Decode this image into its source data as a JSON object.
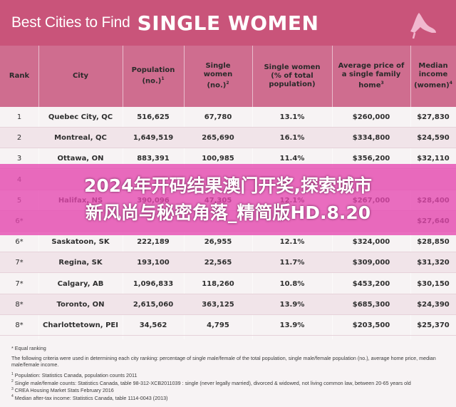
{
  "header": {
    "title_light": "Best Cities to Find",
    "title_bold": "SINGLE WOMEN",
    "icon": "high-heel-shoe-icon"
  },
  "columns": [
    {
      "label": "Rank",
      "sup": ""
    },
    {
      "label": "City",
      "sup": ""
    },
    {
      "label": "Population (no.)",
      "sup": "1"
    },
    {
      "label": "Single women (no.)",
      "sup": "2"
    },
    {
      "label": "Single women (% of total population)",
      "sup": ""
    },
    {
      "label": "Average price of a single family home",
      "sup": "3"
    },
    {
      "label": "Median income (women)",
      "sup": "4"
    }
  ],
  "rows": [
    {
      "rank": "1",
      "city": "Quebec City, QC",
      "population": "516,625",
      "single": "67,780",
      "pct": "13.1%",
      "price": "$260,000",
      "income": "$27,830"
    },
    {
      "rank": "2",
      "city": "Montreal, QC",
      "population": "1,649,519",
      "single": "265,690",
      "pct": "16.1%",
      "price": "$334,800",
      "income": "$24,590"
    },
    {
      "rank": "3",
      "city": "Ottawa, ON",
      "population": "883,391",
      "single": "100,985",
      "pct": "11.4%",
      "price": "$356,200",
      "income": "$32,110"
    },
    {
      "rank": "4",
      "city": "",
      "population": "",
      "single": "",
      "pct": "",
      "price": "",
      "income": ""
    },
    {
      "rank": "5",
      "city": "Halifax, NS",
      "population": "390,096",
      "single": "47,305",
      "pct": "12.1%",
      "price": "$267,000",
      "income": "$28,400"
    },
    {
      "rank": "6*",
      "city": "",
      "population": "",
      "single": "",
      "pct": "",
      "price": "",
      "income": "$27,640"
    },
    {
      "rank": "6*",
      "city": "Saskatoon, SK",
      "population": "222,189",
      "single": "26,955",
      "pct": "12.1%",
      "price": "$324,000",
      "income": "$28,850"
    },
    {
      "rank": "7*",
      "city": "Regina, SK",
      "population": "193,100",
      "single": "22,565",
      "pct": "11.7%",
      "price": "$309,000",
      "income": "$31,320"
    },
    {
      "rank": "7*",
      "city": "Calgary, AB",
      "population": "1,096,833",
      "single": "118,260",
      "pct": "10.8%",
      "price": "$453,200",
      "income": "$30,150"
    },
    {
      "rank": "8*",
      "city": "Toronto, ON",
      "population": "2,615,060",
      "single": "363,125",
      "pct": "13.9%",
      "price": "$685,300",
      "income": "$24,390"
    },
    {
      "rank": "8*",
      "city": "Charlottetown, PEI",
      "population": "34,562",
      "single": "4,795",
      "pct": "13.9%",
      "price": "$203,500",
      "income": "$25,370"
    }
  ],
  "overlay": {
    "line1": "2024年开码结果澳门开奖,探索城市",
    "line2": "新风尚与秘密角落_精简版HD.8.20"
  },
  "notes": {
    "equal": "* Equal ranking",
    "criteria": "The following criteria were used in determining each city ranking: percentage of single male/female of the total population, single male/female population (no.), average home price, median male/female income.",
    "sources": [
      {
        "num": "1",
        "text": "Population: Statistics Canada, population counts 2011"
      },
      {
        "num": "2",
        "text": "Single male/female counts: Statistics Canada, table 98-312-XCB2011039 : single (never legally married), divorced & widowed, not living common law, between 20-65 years old"
      },
      {
        "num": "3",
        "text": "CREA Housing Market Stats February 2016"
      },
      {
        "num": "4",
        "text": "Median after-tax income: Statistics Canada, table 1114-0043 (2013)"
      }
    ]
  },
  "colors": {
    "header": "#c9547a",
    "table_header": "#cf6d8f",
    "overlay": "#e646af"
  }
}
